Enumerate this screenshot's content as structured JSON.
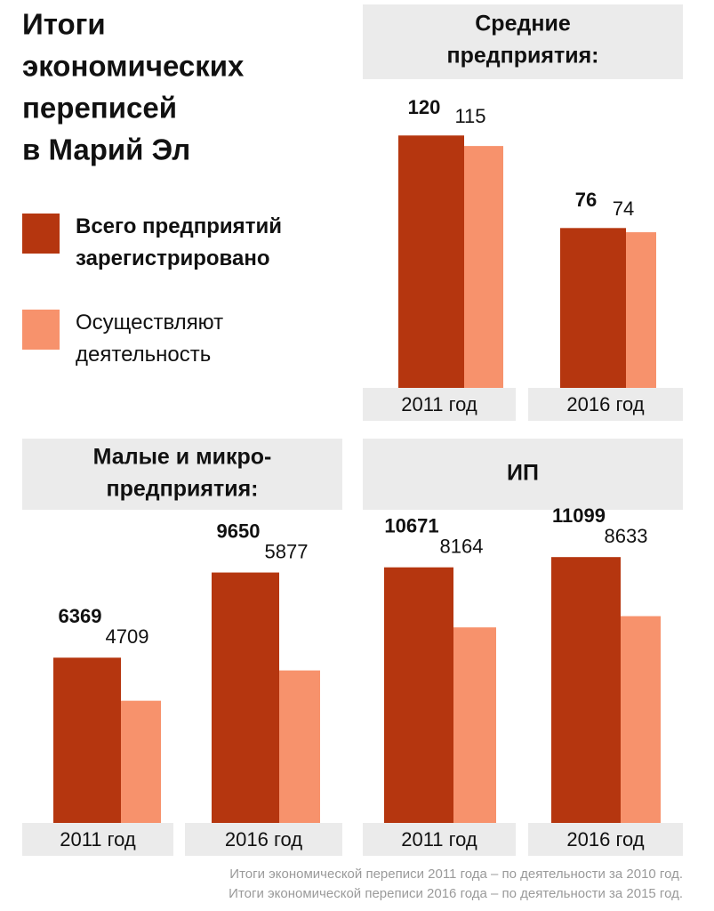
{
  "title": [
    "Итоги",
    "экономических",
    "переписей",
    "в Марий Эл"
  ],
  "chart_data": [
    {
      "type": "bar",
      "title": [
        "Средние",
        "предприятия:"
      ],
      "categories": [
        "2011 год",
        "2016 год"
      ],
      "series": [
        {
          "name": "Всего предприятий зарегистрировано",
          "color": "#b5360f",
          "values": [
            120,
            76
          ]
        },
        {
          "name": "Осуществляют деятельность",
          "color": "#f7926c",
          "values": [
            115,
            74
          ]
        }
      ],
      "ylim": [
        0,
        140
      ]
    },
    {
      "type": "bar",
      "title": [
        "Малые и микро-",
        "предприятия:"
      ],
      "categories": [
        "2011 год",
        "2016 год"
      ],
      "series": [
        {
          "color": "#b5360f",
          "values": [
            6369,
            9650
          ]
        },
        {
          "color": "#f7926c",
          "values": [
            4709,
            5877
          ]
        }
      ],
      "ylim": [
        0,
        12000
      ]
    },
    {
      "type": "bar",
      "title": [
        "ИП"
      ],
      "categories": [
        "2011 год",
        "2016 год"
      ],
      "series": [
        {
          "color": "#b5360f",
          "values": [
            10671,
            11099
          ]
        },
        {
          "color": "#f7926c",
          "values": [
            8164,
            8633
          ]
        }
      ],
      "ylim": [
        0,
        13000
      ]
    }
  ],
  "footnotes": [
    "Итоги экономической переписи 2011 года – по деятельности за 2010 год.",
    "Итоги экономической переписи 2016 года – по деятельности за 2015 год."
  ]
}
